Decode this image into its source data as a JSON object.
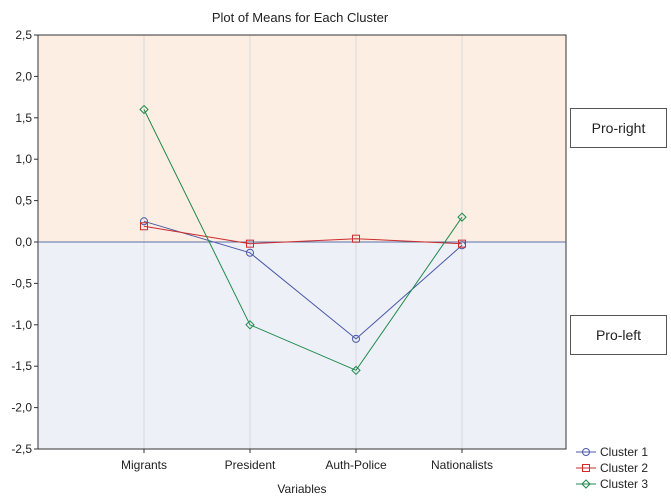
{
  "chart_data": {
    "type": "line",
    "title": "Plot of Means for Each Cluster",
    "xlabel": "Variables",
    "ylabel": "",
    "categories": [
      "Migrants",
      "President",
      "Auth-Police",
      "Nationalists"
    ],
    "ylim": [
      -2.5,
      2.5
    ],
    "yticks": [
      "2,5",
      "2,0",
      "1,5",
      "1,0",
      "0,5",
      "0,0",
      "-0,5",
      "-1,0",
      "-1,5",
      "-2,0",
      "-2,5"
    ],
    "grid": true,
    "legend_position": "bottom-right",
    "series": [
      {
        "name": "Cluster  1",
        "values": [
          0.25,
          -0.13,
          -1.17,
          -0.04
        ],
        "color": "#4a5aa8",
        "marker": "circle"
      },
      {
        "name": "Cluster  2",
        "values": [
          0.19,
          -0.02,
          0.04,
          -0.02
        ],
        "color": "#cc2b2b",
        "marker": "square"
      },
      {
        "name": "Cluster  3",
        "values": [
          1.6,
          -1.0,
          -1.55,
          0.3
        ],
        "color": "#1f8a4c",
        "marker": "diamond"
      }
    ],
    "annotations": [
      "Pro-right",
      "Pro-left"
    ],
    "bands": {
      "positive_color": "#fdeee4",
      "negative_color": "#eef0f7"
    }
  }
}
